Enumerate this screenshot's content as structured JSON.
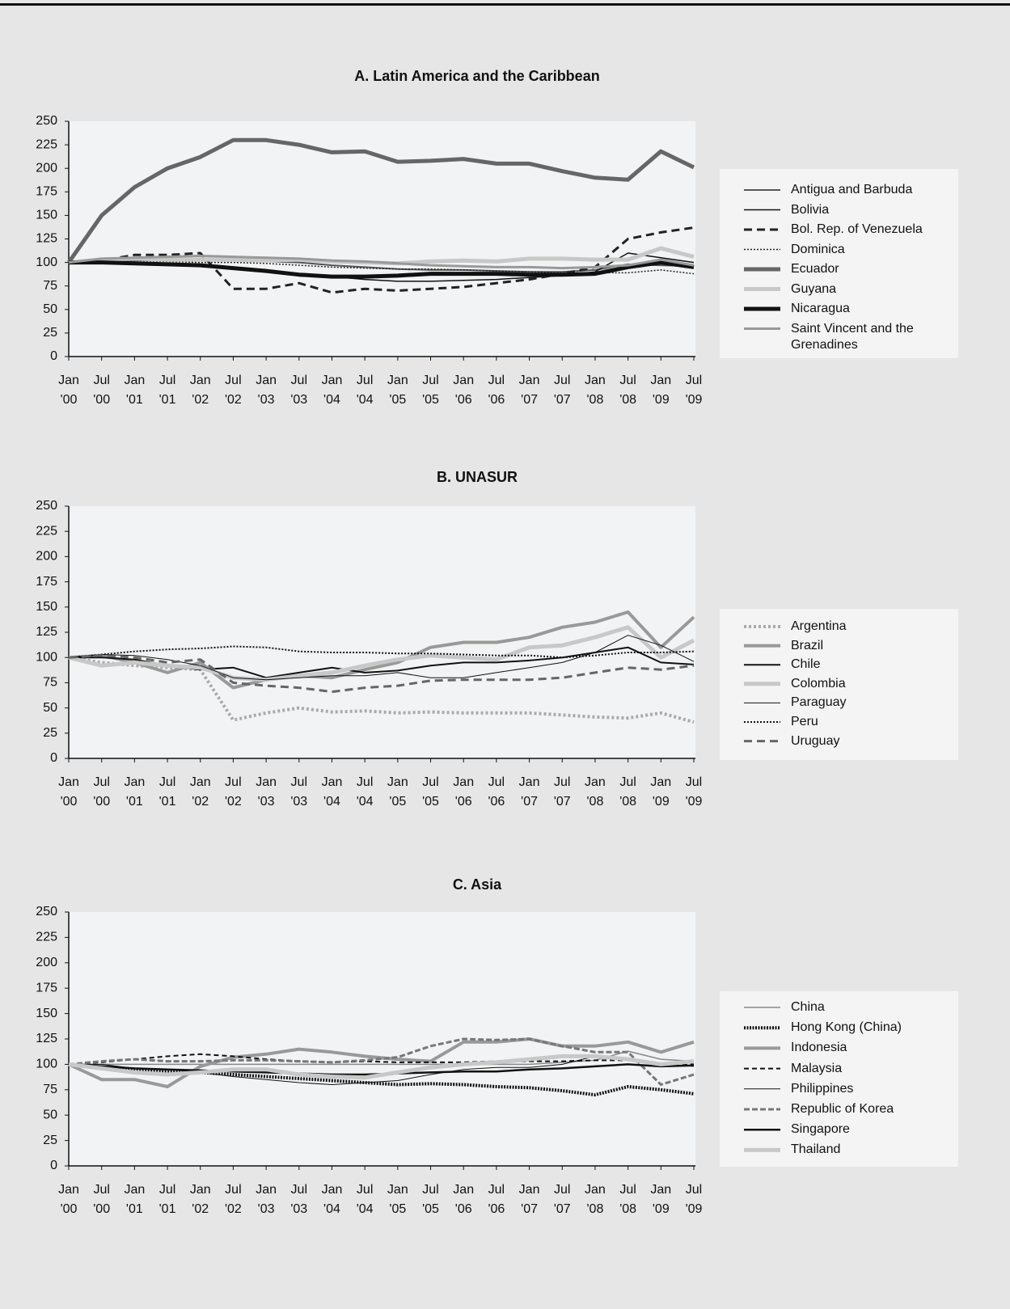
{
  "chart_data": [
    {
      "type": "line",
      "title": "A. Latin America and the Caribbean",
      "categories": [
        "Jan '00",
        "Jul '00",
        "Jan '01",
        "Jul '01",
        "Jan '02",
        "Jul '02",
        "Jan '03",
        "Jul '03",
        "Jan '04",
        "Jul '04",
        "Jan '05",
        "Jul '05",
        "Jan '06",
        "Jul '06",
        "Jan '07",
        "Jul '07",
        "Jan '08",
        "Jul '08",
        "Jan '09",
        "Jul '09"
      ],
      "ylim": [
        0,
        250
      ],
      "yticks": [
        0,
        25,
        50,
        75,
        100,
        125,
        150,
        175,
        200,
        225,
        250
      ],
      "legend": "right",
      "series": [
        {
          "name": "Antigua and Barbuda",
          "color": "#555555",
          "width": 2,
          "dash": "none",
          "values": [
            100,
            101,
            102,
            103,
            104,
            103,
            101,
            100,
            97,
            95,
            93,
            92,
            92,
            91,
            90,
            90,
            92,
            98,
            97,
            96
          ]
        },
        {
          "name": "Bolivia",
          "color": "#111111",
          "width": 1.5,
          "dash": "none",
          "values": [
            100,
            100,
            99,
            98,
            96,
            93,
            90,
            88,
            85,
            82,
            80,
            80,
            81,
            82,
            84,
            86,
            90,
            110,
            105,
            100
          ]
        },
        {
          "name": "Bol. Rep. of  Venezuela",
          "color": "#222222",
          "width": 3,
          "dash": "10 6",
          "values": [
            100,
            102,
            108,
            108,
            110,
            72,
            72,
            78,
            68,
            72,
            70,
            72,
            74,
            78,
            82,
            88,
            95,
            125,
            132,
            137
          ]
        },
        {
          "name": "Dominica",
          "color": "#222222",
          "width": 1.5,
          "dash": "2 2",
          "values": [
            100,
            101,
            102,
            101,
            100,
            100,
            99,
            97,
            95,
            94,
            93,
            93,
            92,
            91,
            90,
            89,
            89,
            89,
            92,
            88
          ]
        },
        {
          "name": "Ecuador",
          "color": "#666666",
          "width": 5,
          "dash": "none",
          "values": [
            100,
            150,
            180,
            200,
            212,
            230,
            230,
            225,
            217,
            218,
            207,
            208,
            210,
            205,
            205,
            197,
            190,
            188,
            218,
            201
          ]
        },
        {
          "name": "Guyana",
          "color": "#c8c8c8",
          "width": 5,
          "dash": "none",
          "values": [
            100,
            103,
            104,
            103,
            103,
            103,
            102,
            103,
            101,
            100,
            99,
            101,
            102,
            101,
            104,
            104,
            103,
            103,
            115,
            106
          ]
        },
        {
          "name": "Nicaragua",
          "color": "#111111",
          "width": 5,
          "dash": "none",
          "values": [
            100,
            100,
            99,
            98,
            97,
            94,
            91,
            87,
            85,
            85,
            86,
            88,
            88,
            88,
            87,
            87,
            88,
            95,
            100,
            95
          ]
        },
        {
          "name": "Saint Vincent and the Grenadines",
          "color": "#999999",
          "width": 3,
          "dash": "none",
          "values": [
            100,
            104,
            105,
            106,
            107,
            106,
            105,
            104,
            102,
            101,
            99,
            97,
            96,
            95,
            95,
            94,
            95,
            97,
            103,
            97
          ]
        }
      ]
    },
    {
      "type": "line",
      "title": "B. UNASUR",
      "categories": [
        "Jan '00",
        "Jul '00",
        "Jan '01",
        "Jul '01",
        "Jan '02",
        "Jul '02",
        "Jan '03",
        "Jul '03",
        "Jan '04",
        "Jul '04",
        "Jan '05",
        "Jul '05",
        "Jan '06",
        "Jul '06",
        "Jan '07",
        "Jul '07",
        "Jan '08",
        "Jul '08",
        "Jan '09",
        "Jul '09"
      ],
      "ylim": [
        0,
        250
      ],
      "yticks": [
        0,
        25,
        50,
        75,
        100,
        125,
        150,
        175,
        200,
        225,
        250
      ],
      "legend": "right",
      "series": [
        {
          "name": "Argentina",
          "color": "#aaaaaa",
          "width": 4,
          "dash": "3 3",
          "values": [
            100,
            95,
            92,
            90,
            88,
            38,
            45,
            50,
            46,
            47,
            45,
            46,
            45,
            45,
            45,
            43,
            41,
            40,
            45,
            36
          ]
        },
        {
          "name": "Brazil",
          "color": "#999999",
          "width": 4,
          "dash": "none",
          "values": [
            100,
            102,
            95,
            85,
            95,
            70,
            78,
            82,
            80,
            88,
            95,
            110,
            115,
            115,
            120,
            130,
            135,
            145,
            110,
            140
          ]
        },
        {
          "name": "Chile",
          "color": "#111111",
          "width": 2,
          "dash": "none",
          "values": [
            100,
            100,
            98,
            92,
            88,
            90,
            80,
            85,
            90,
            85,
            87,
            92,
            95,
            95,
            97,
            100,
            105,
            110,
            95,
            93
          ]
        },
        {
          "name": "Colombia",
          "color": "#c8c8c8",
          "width": 5,
          "dash": "none",
          "values": [
            100,
            92,
            95,
            92,
            90,
            80,
            78,
            82,
            85,
            92,
            98,
            102,
            100,
            98,
            110,
            112,
            120,
            130,
            100,
            117
          ]
        },
        {
          "name": "Paraguay",
          "color": "#111111",
          "width": 1,
          "dash": "none",
          "values": [
            100,
            103,
            102,
            98,
            92,
            80,
            78,
            80,
            82,
            82,
            85,
            80,
            80,
            85,
            90,
            95,
            105,
            122,
            112,
            96
          ]
        },
        {
          "name": "Peru",
          "color": "#111111",
          "width": 2,
          "dash": "2 2",
          "values": [
            100,
            103,
            106,
            108,
            109,
            111,
            110,
            106,
            105,
            105,
            104,
            104,
            103,
            102,
            102,
            100,
            102,
            105,
            105,
            106
          ]
        },
        {
          "name": "Uruguay",
          "color": "#666666",
          "width": 3,
          "dash": "10 6",
          "values": [
            100,
            102,
            100,
            95,
            98,
            75,
            72,
            70,
            66,
            70,
            72,
            77,
            78,
            78,
            78,
            80,
            85,
            90,
            88,
            92
          ]
        }
      ]
    },
    {
      "type": "line",
      "title": "C. Asia",
      "categories": [
        "Jan '00",
        "Jul '00",
        "Jan '01",
        "Jul '01",
        "Jan '02",
        "Jul '02",
        "Jan '03",
        "Jul '03",
        "Jan '04",
        "Jul '04",
        "Jan '05",
        "Jul '05",
        "Jan '06",
        "Jul '06",
        "Jan '07",
        "Jul '07",
        "Jan '08",
        "Jul '08",
        "Jan '09",
        "Jul '09"
      ],
      "ylim": [
        0,
        250
      ],
      "yticks": [
        0,
        25,
        50,
        75,
        100,
        125,
        150,
        175,
        200,
        225,
        250
      ],
      "legend": "right",
      "series": [
        {
          "name": "China",
          "color": "#888888",
          "width": 1.5,
          "dash": "none",
          "values": [
            100,
            100,
            100,
            100,
            100,
            100,
            100,
            100,
            100,
            100,
            100,
            100,
            100,
            100,
            100,
            102,
            104,
            113,
            105,
            103
          ]
        },
        {
          "name": "Hong Kong (China)",
          "color": "#111111",
          "width": 4,
          "dash": "2 1.5",
          "values": [
            100,
            97,
            95,
            93,
            92,
            90,
            88,
            86,
            84,
            82,
            80,
            81,
            80,
            78,
            77,
            74,
            70,
            78,
            75,
            71
          ]
        },
        {
          "name": "Indonesia",
          "color": "#999999",
          "width": 4,
          "dash": "none",
          "values": [
            100,
            85,
            85,
            78,
            98,
            107,
            110,
            115,
            112,
            108,
            105,
            103,
            122,
            122,
            125,
            118,
            118,
            122,
            112,
            122
          ]
        },
        {
          "name": "Malaysia",
          "color": "#111111",
          "width": 2,
          "dash": "6 4",
          "values": [
            100,
            102,
            105,
            108,
            110,
            108,
            105,
            103,
            102,
            103,
            102,
            102,
            102,
            103,
            103,
            103,
            104,
            104,
            100,
            100
          ]
        },
        {
          "name": "Philippines",
          "color": "#111111",
          "width": 1,
          "dash": "none",
          "values": [
            100,
            100,
            96,
            95,
            92,
            88,
            85,
            82,
            80,
            82,
            84,
            90,
            95,
            97,
            97,
            100,
            108,
            105,
            100,
            98
          ]
        },
        {
          "name": "Republic of Korea",
          "color": "#777777",
          "width": 3,
          "dash": "7 3",
          "values": [
            100,
            103,
            105,
            103,
            103,
            104,
            104,
            103,
            102,
            104,
            107,
            118,
            125,
            124,
            125,
            118,
            112,
            112,
            80,
            90
          ]
        },
        {
          "name": "Singapore",
          "color": "#111111",
          "width": 2.5,
          "dash": "none",
          "values": [
            100,
            98,
            96,
            95,
            94,
            93,
            92,
            91,
            90,
            90,
            91,
            92,
            93,
            93,
            95,
            96,
            98,
            100,
            98,
            99
          ]
        },
        {
          "name": "Thailand",
          "color": "#c8c8c8",
          "width": 5,
          "dash": "none",
          "values": [
            100,
            96,
            92,
            90,
            92,
            95,
            95,
            90,
            88,
            87,
            92,
            97,
            100,
            102,
            105,
            108,
            108,
            105,
            100,
            103
          ]
        }
      ]
    }
  ]
}
